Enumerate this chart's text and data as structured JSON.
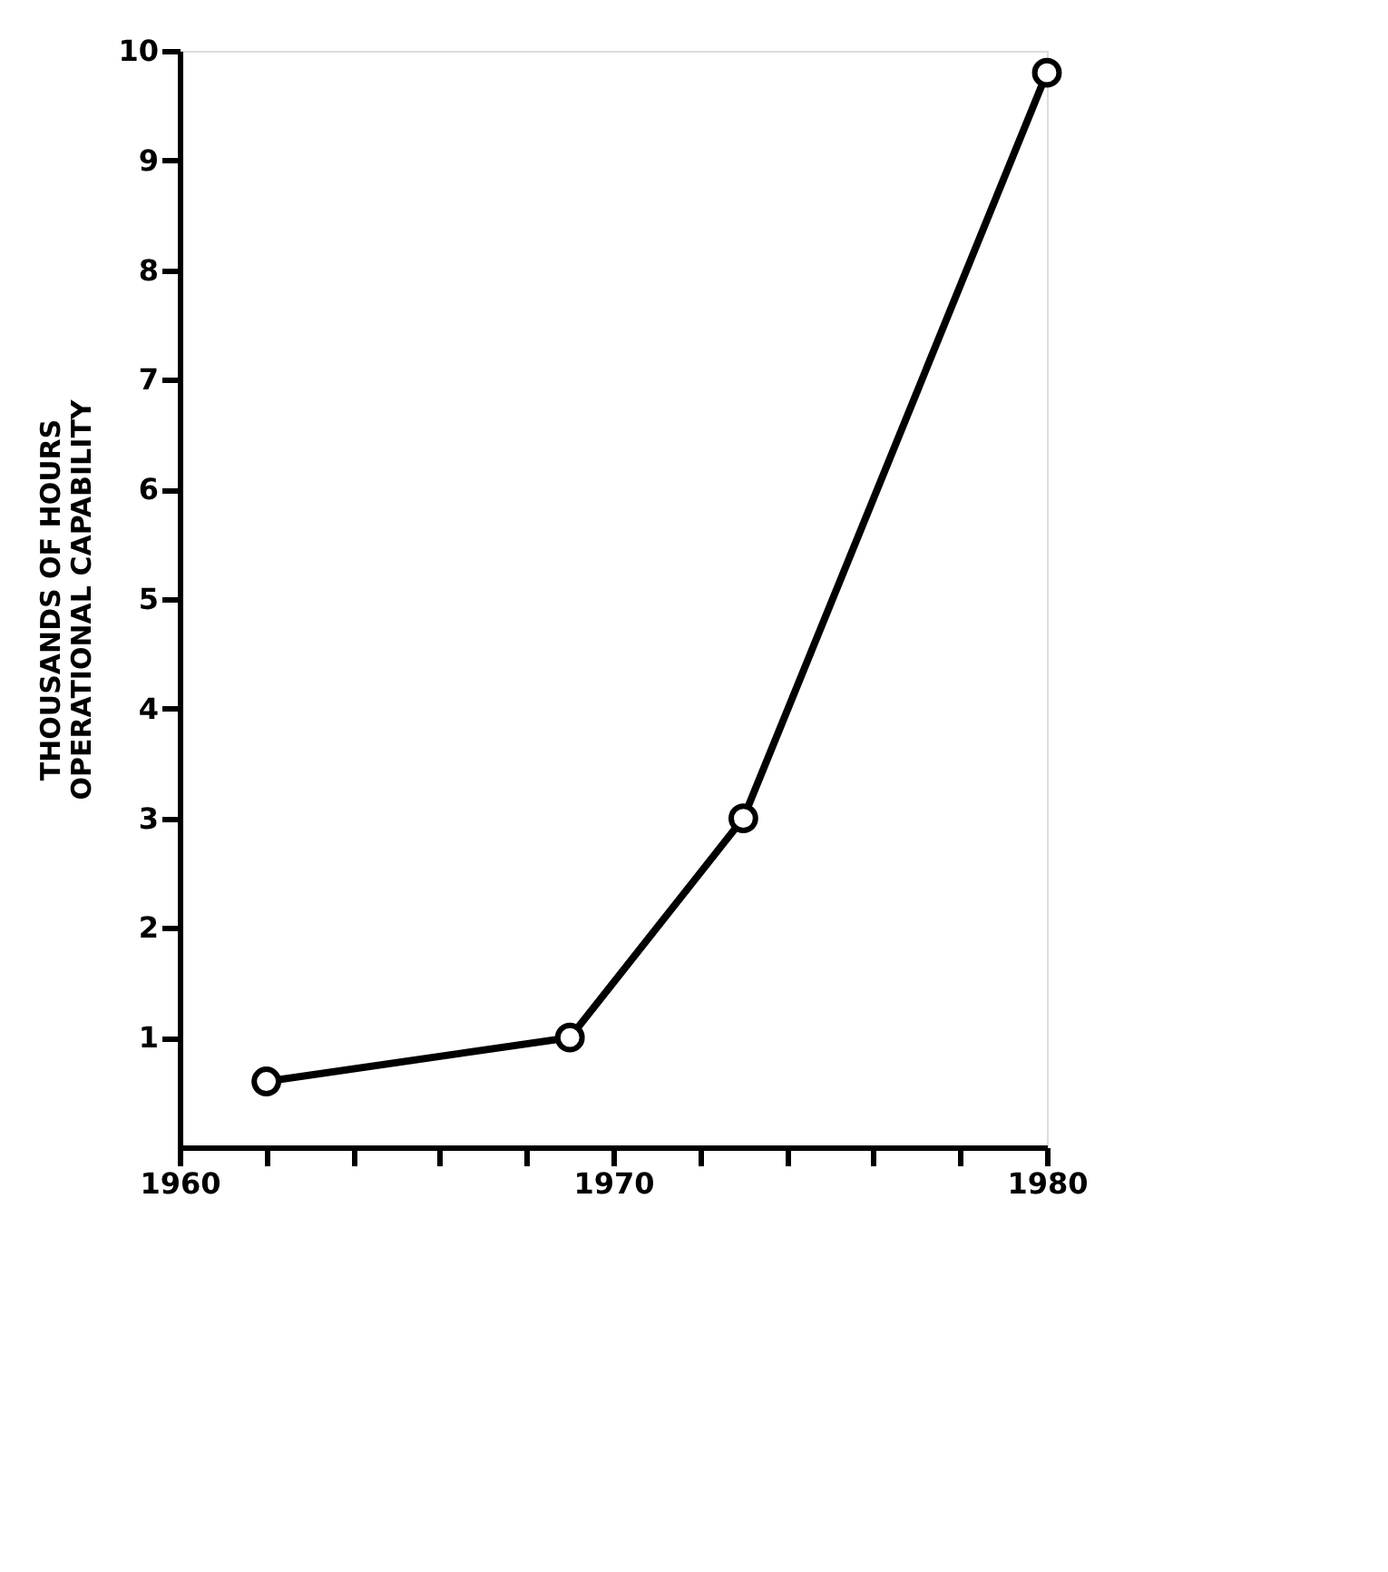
{
  "chart_data": {
    "type": "line",
    "ylabel": "THOUSANDS OF HOURS\nOPERATIONAL CAPABILITY",
    "x": [
      1962,
      1969,
      1973,
      1980
    ],
    "series": [
      {
        "color": "#000000",
        "values": [
          0.6,
          1.0,
          3.0,
          9.8
        ]
      }
    ],
    "xlim": [
      1960,
      1980
    ],
    "xticks": [
      1960,
      {
        "value": 1962,
        "label": null
      },
      {
        "value": 1964,
        "label": null
      },
      {
        "value": 1966,
        "label": null
      },
      {
        "value": 1968,
        "label": null
      },
      1970,
      {
        "value": 1972,
        "label": null
      },
      {
        "value": 1974,
        "label": null
      },
      {
        "value": 1976,
        "label": null
      },
      {
        "value": 1978,
        "label": null
      },
      1980
    ],
    "ylim": [
      0,
      10
    ],
    "yticks": [
      1,
      2,
      3,
      4,
      5,
      6,
      7,
      8,
      9,
      10
    ],
    "marker": "circle",
    "line_style": "solid",
    "grid": false
  }
}
